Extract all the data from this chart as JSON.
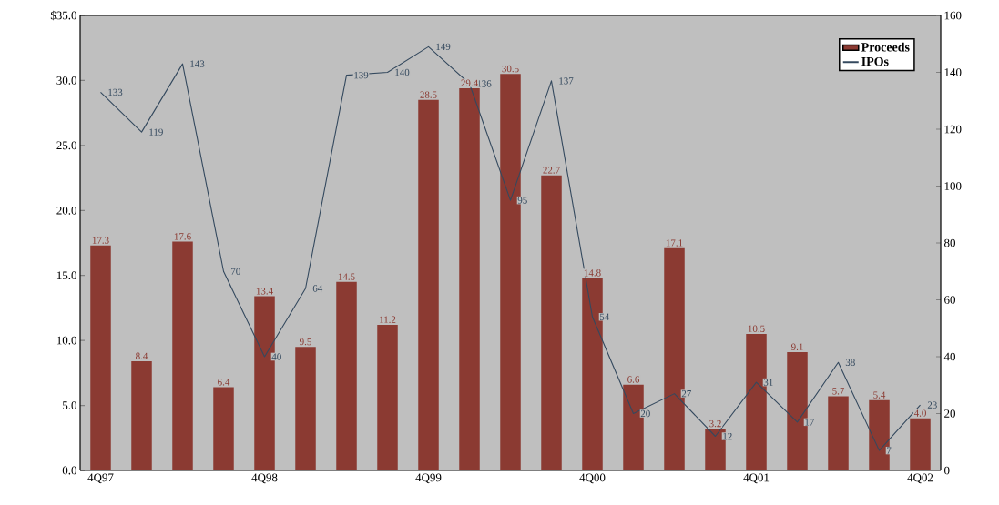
{
  "chart_data": {
    "type": "bar",
    "categories": [
      "4Q97",
      null,
      null,
      null,
      "4Q98",
      null,
      null,
      null,
      "4Q99",
      null,
      null,
      null,
      "4Q00",
      null,
      null,
      null,
      "4Q01",
      null,
      null,
      null,
      "4Q02"
    ],
    "series": [
      {
        "name": "Proceeds",
        "color": "#8b3a32",
        "values": [
          17.3,
          8.4,
          17.6,
          6.4,
          13.4,
          9.5,
          14.5,
          11.2,
          28.5,
          29.4,
          30.5,
          22.7,
          14.8,
          6.6,
          17.1,
          3.2,
          10.5,
          9.1,
          5.7,
          5.4,
          4.0
        ],
        "value_labels": [
          "17.3",
          "8.4",
          "17.6",
          "6.4",
          "13.4",
          "9.5",
          "14.5",
          "11.2",
          "28.5",
          "29.4",
          "30.5",
          "22.7",
          "14.8",
          "6.6",
          "17.1",
          "3.2",
          "10.5",
          "9.1",
          "5.7",
          "5.4",
          "4.0"
        ]
      },
      {
        "name": "IPOs",
        "type": "line",
        "axis": "y2",
        "color": "#34495e",
        "values": [
          133,
          119,
          143,
          70,
          40,
          64,
          139,
          140,
          149,
          136,
          95,
          137,
          54,
          20,
          27,
          12,
          31,
          17,
          38,
          7,
          23
        ],
        "value_labels": [
          "133",
          "119",
          "143",
          "70",
          "40",
          "64",
          "139",
          "140",
          "149",
          "136",
          "95",
          "137",
          "54",
          "20",
          "27",
          "12",
          "31",
          "17",
          "38",
          "7",
          "23"
        ]
      }
    ],
    "ylim": [
      0,
      35
    ],
    "yticks": [
      {
        "value": 0,
        "label": "0.0"
      },
      {
        "value": 5,
        "label": "5.0"
      },
      {
        "value": 10,
        "label": "10.0"
      },
      {
        "value": 15,
        "label": "15.0"
      },
      {
        "value": 20,
        "label": "20.0"
      },
      {
        "value": 25,
        "label": "25.0"
      },
      {
        "value": 30,
        "label": "30.0"
      },
      {
        "value": 35,
        "label": "$35.0"
      }
    ],
    "y2lim": [
      0,
      160
    ],
    "y2ticks": [
      0,
      20,
      40,
      60,
      80,
      100,
      120,
      140,
      160
    ],
    "legend": "top right",
    "marker": "none",
    "line_style": "solid"
  }
}
